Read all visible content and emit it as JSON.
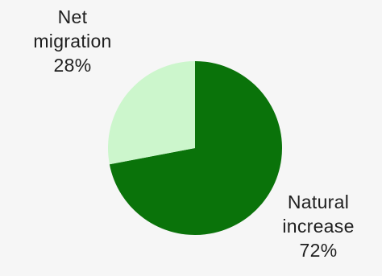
{
  "colors": {
    "background": "#f6f6f6",
    "natural_increase": "#0a730a",
    "net_migration": "#ccf6cc"
  },
  "chart_data": {
    "type": "pie",
    "title": "",
    "start": "12 o'clock",
    "direction": "clockwise",
    "slices": [
      {
        "label_lines": [
          "Natural",
          "increase"
        ],
        "label": "Natural increase",
        "value": 72,
        "display": "72%",
        "color": "#0a730a"
      },
      {
        "label_lines": [
          "Net",
          "migration"
        ],
        "label": "Net migration",
        "value": 28,
        "display": "28%",
        "color": "#ccf6cc"
      }
    ]
  }
}
